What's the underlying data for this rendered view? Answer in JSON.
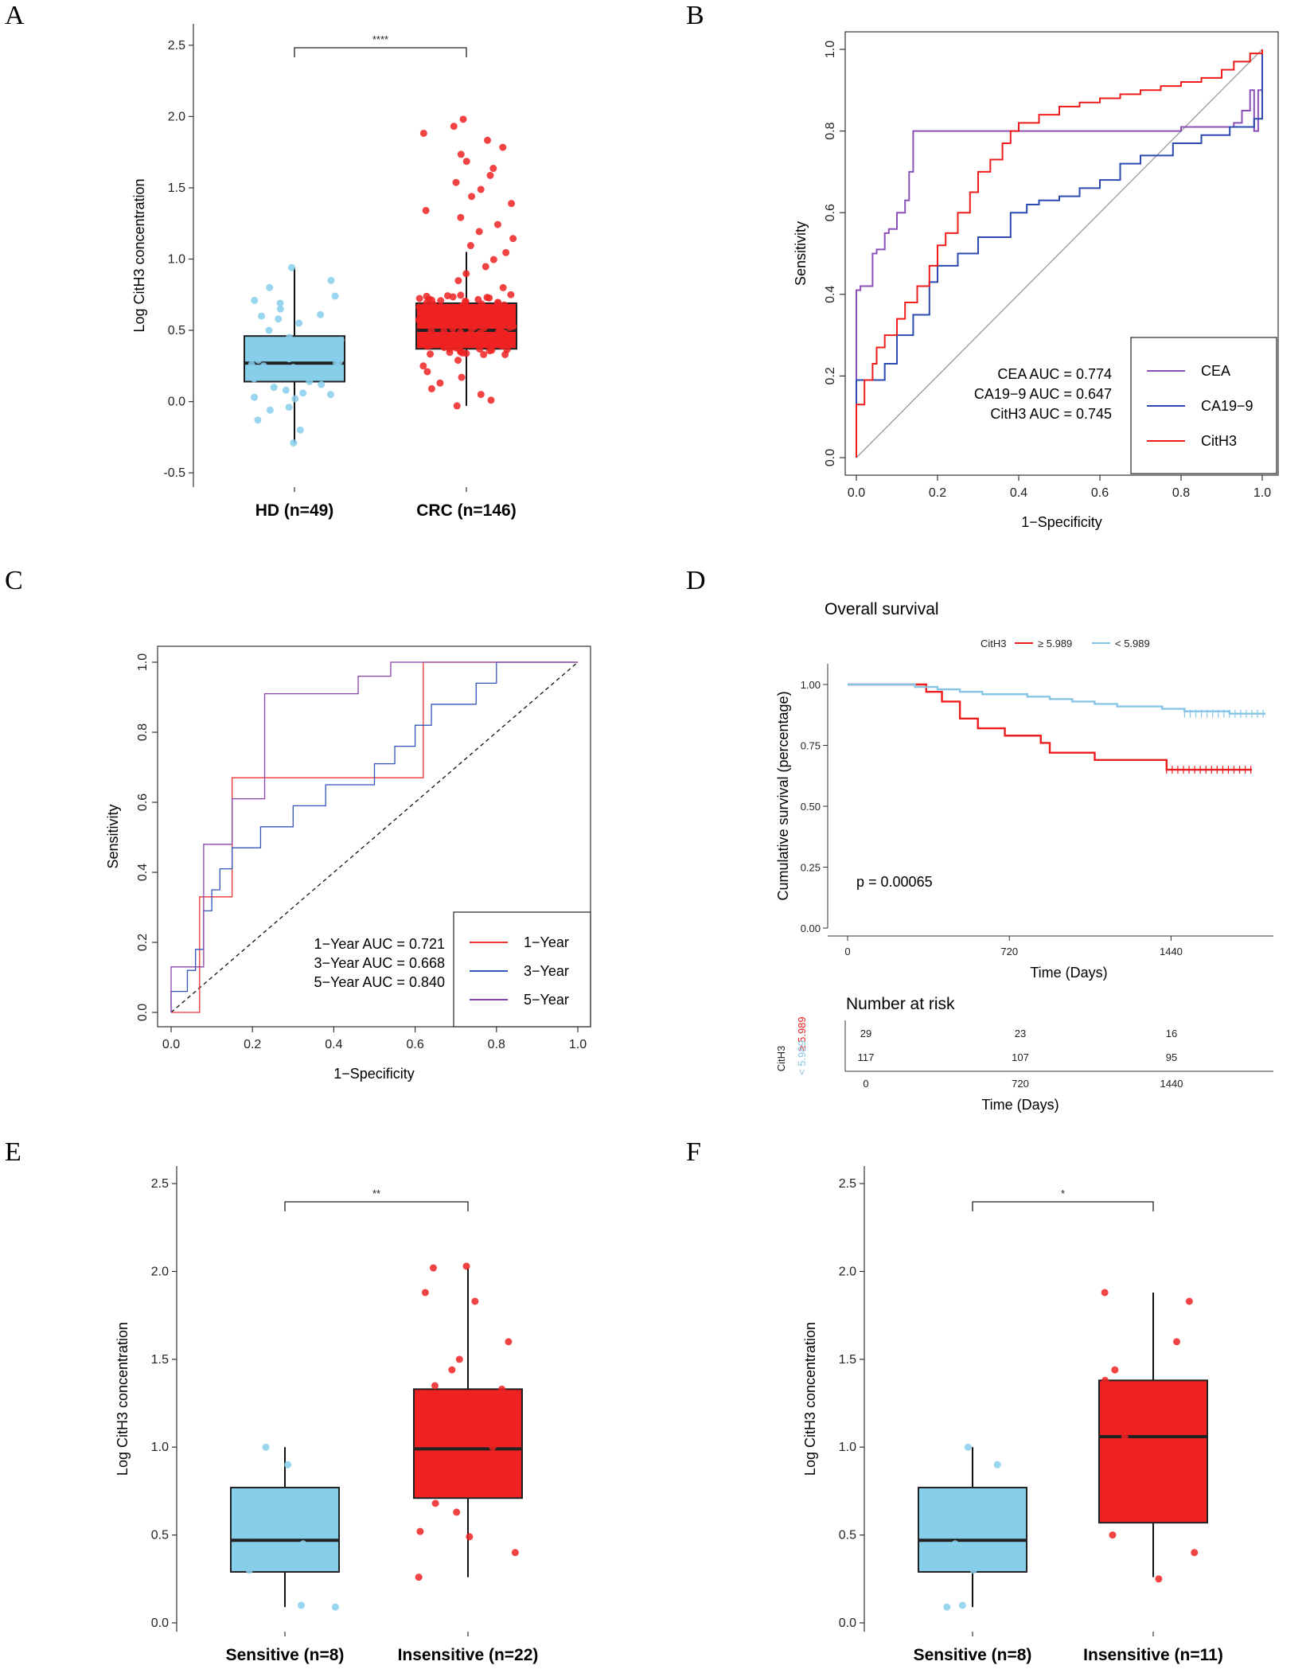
{
  "colors": {
    "hd": "#87ceeb",
    "crc": "#ee2222",
    "cea": "#8b4fb8",
    "ca199": "#2a4aaf",
    "cith3": "#ee1c1c",
    "km_high": "#ee1c1c",
    "km_low": "#87c5e6",
    "y1": "#ee3333",
    "y3": "#3355bb",
    "y5": "#8844aa"
  },
  "chart_data": [
    {
      "panel": "A",
      "type": "box",
      "ylabel": "Log CitH3 concentration",
      "ylim": [
        -0.6,
        2.65
      ],
      "yticks": [
        "-0.5",
        "0.0",
        "0.5",
        "1.0",
        "1.5",
        "2.0",
        "2.5"
      ],
      "significance": "****",
      "groups": [
        {
          "label": "HD (n=49)",
          "q1": 0.14,
          "median": 0.27,
          "q3": 0.46,
          "whisker_low": -0.29,
          "whisker_high": 0.94
        },
        {
          "label": "CRC (n=146)",
          "q1": 0.37,
          "median": 0.5,
          "q3": 0.69,
          "whisker_low": -0.03,
          "whisker_high": 1.05
        }
      ]
    },
    {
      "panel": "B",
      "type": "line",
      "xlabel": "1−Specificity",
      "ylabel": "Sensitivity",
      "xticks": [
        "0.0",
        "0.2",
        "0.4",
        "0.6",
        "0.8",
        "1.0"
      ],
      "yticks": [
        "0.0",
        "0.2",
        "0.4",
        "0.6",
        "0.8",
        "1.0"
      ],
      "auc_text": [
        "CEA AUC =  0.774",
        "CA19−9 AUC =  0.647",
        "CitH3 AUC =  0.745"
      ],
      "legend": [
        "CEA",
        "CA19−9",
        "CitH3"
      ],
      "series": [
        {
          "name": "CEA",
          "x": [
            0,
            0,
            0.01,
            0.04,
            0.05,
            0.07,
            0.08,
            0.1,
            0.12,
            0.13,
            0.14,
            0.4,
            0.8,
            0.93,
            0.95,
            0.97,
            0.98,
            0.99,
            1.0
          ],
          "y": [
            0,
            0.41,
            0.42,
            0.5,
            0.51,
            0.55,
            0.56,
            0.6,
            0.63,
            0.7,
            0.8,
            0.8,
            0.81,
            0.82,
            0.85,
            0.9,
            0.8,
            0.9,
            1.0
          ]
        },
        {
          "name": "CA19−9",
          "x": [
            0,
            0,
            0.05,
            0.07,
            0.1,
            0.14,
            0.18,
            0.2,
            0.25,
            0.3,
            0.35,
            0.38,
            0.42,
            0.45,
            0.5,
            0.55,
            0.6,
            0.65,
            0.7,
            0.78,
            0.85,
            0.92,
            0.98,
            1.0
          ],
          "y": [
            0,
            0.19,
            0.19,
            0.23,
            0.3,
            0.35,
            0.43,
            0.47,
            0.5,
            0.54,
            0.54,
            0.6,
            0.62,
            0.63,
            0.64,
            0.66,
            0.68,
            0.72,
            0.74,
            0.77,
            0.79,
            0.81,
            0.83,
            1.0
          ]
        },
        {
          "name": "CitH3",
          "x": [
            0,
            0,
            0.02,
            0.04,
            0.05,
            0.07,
            0.1,
            0.12,
            0.15,
            0.18,
            0.2,
            0.22,
            0.25,
            0.28,
            0.3,
            0.33,
            0.36,
            0.38,
            0.4,
            0.45,
            0.5,
            0.55,
            0.6,
            0.65,
            0.7,
            0.75,
            0.8,
            0.85,
            0.9,
            0.93,
            0.97,
            1.0
          ],
          "y": [
            0,
            0.13,
            0.19,
            0.23,
            0.27,
            0.3,
            0.34,
            0.38,
            0.42,
            0.47,
            0.52,
            0.55,
            0.6,
            0.65,
            0.7,
            0.73,
            0.77,
            0.8,
            0.82,
            0.84,
            0.86,
            0.87,
            0.88,
            0.89,
            0.9,
            0.91,
            0.92,
            0.93,
            0.95,
            0.97,
            0.99,
            1.0
          ]
        }
      ]
    },
    {
      "panel": "C",
      "type": "line",
      "xlabel": "1−Specificity",
      "ylabel": "Sensitivity",
      "xticks": [
        "0.0",
        "0.2",
        "0.4",
        "0.6",
        "0.8",
        "1.0"
      ],
      "yticks": [
        "0.0",
        "0.2",
        "0.4",
        "0.6",
        "0.8",
        "1.0"
      ],
      "auc_text": [
        "1−Year AUC =  0.721",
        "3−Year AUC =  0.668",
        "5−Year AUC =  0.840"
      ],
      "legend": [
        "1−Year",
        "3−Year",
        "5−Year"
      ],
      "series": [
        {
          "name": "1−Year",
          "x": [
            0,
            0.07,
            0.07,
            0.1,
            0.15,
            0.15,
            0.62,
            0.62,
            1.0
          ],
          "y": [
            0,
            0,
            0.33,
            0.33,
            0.33,
            0.67,
            0.67,
            1.0,
            1.0
          ]
        },
        {
          "name": "3−Year",
          "x": [
            0,
            0,
            0.04,
            0.06,
            0.08,
            0.1,
            0.12,
            0.15,
            0.18,
            0.22,
            0.26,
            0.3,
            0.34,
            0.38,
            0.42,
            0.5,
            0.55,
            0.6,
            0.64,
            0.7,
            0.75,
            0.8,
            0.8,
            1.0
          ],
          "y": [
            0,
            0.06,
            0.12,
            0.18,
            0.29,
            0.35,
            0.41,
            0.47,
            0.47,
            0.53,
            0.53,
            0.59,
            0.59,
            0.65,
            0.65,
            0.71,
            0.76,
            0.82,
            0.88,
            0.88,
            0.94,
            0.94,
            1.0,
            1.0
          ]
        },
        {
          "name": "5−Year",
          "x": [
            0,
            0,
            0.04,
            0.05,
            0.08,
            0.1,
            0.15,
            0.23,
            0.23,
            0.45,
            0.46,
            0.54,
            0.54,
            1.0
          ],
          "y": [
            0,
            0.13,
            0.13,
            0.13,
            0.48,
            0.48,
            0.61,
            0.61,
            0.91,
            0.91,
            0.96,
            0.96,
            1.0,
            1.0
          ]
        }
      ]
    },
    {
      "panel": "D",
      "type": "line",
      "title": "Overall survival",
      "xlabel": "Time (Days)",
      "ylabel": "Cumulative survival (percentage)",
      "xticks": [
        "0",
        "720",
        "1440"
      ],
      "yticks": [
        "0.00",
        "0.25",
        "0.50",
        "0.75",
        "1.00"
      ],
      "legend_title": "CitH3",
      "legend": [
        "≥ 5.989",
        "< 5.989"
      ],
      "pvalue": "p = 0.00065",
      "series": [
        {
          "name": "≥ 5.989",
          "x": [
            0,
            150,
            300,
            350,
            420,
            500,
            580,
            700,
            860,
            900,
            1040,
            1100,
            1300,
            1420,
            1800
          ],
          "y": [
            1.0,
            1.0,
            1.0,
            0.97,
            0.93,
            0.86,
            0.82,
            0.79,
            0.76,
            0.72,
            0.72,
            0.69,
            0.69,
            0.65,
            0.65
          ]
        },
        {
          "name": "< 5.989",
          "x": [
            0,
            150,
            300,
            400,
            500,
            600,
            700,
            800,
            900,
            1000,
            1100,
            1200,
            1300,
            1400,
            1500,
            1600,
            1700,
            1860
          ],
          "y": [
            1.0,
            1.0,
            0.99,
            0.98,
            0.97,
            0.96,
            0.96,
            0.95,
            0.94,
            0.93,
            0.92,
            0.91,
            0.91,
            0.9,
            0.89,
            0.89,
            0.88,
            0.88
          ]
        }
      ],
      "risk_table": {
        "title": "Number at risk",
        "strata_title": "CitH3",
        "rows": [
          {
            "label": "≥ 5.989",
            "values": [
              "29",
              "23",
              "16"
            ]
          },
          {
            "label": "< 5.989",
            "values": [
              "117",
              "107",
              "95"
            ]
          }
        ],
        "xticks": [
          "0",
          "720",
          "1440"
        ],
        "xlabel": "Time (Days)"
      }
    },
    {
      "panel": "E",
      "type": "box",
      "ylabel": "Log CitH3 concentration",
      "ylim": [
        -0.05,
        2.6
      ],
      "yticks": [
        "0.0",
        "0.5",
        "1.0",
        "1.5",
        "2.0",
        "2.5"
      ],
      "significance": "**",
      "groups": [
        {
          "label": "Sensitive (n=8)",
          "q1": 0.29,
          "median": 0.47,
          "q3": 0.77,
          "whisker_low": 0.09,
          "whisker_high": 1.0
        },
        {
          "label": "Insensitive (n=22)",
          "q1": 0.71,
          "median": 0.99,
          "q3": 1.33,
          "whisker_low": 0.26,
          "whisker_high": 2.02
        }
      ]
    },
    {
      "panel": "F",
      "type": "box",
      "ylabel": "Log CitH3 concentration",
      "ylim": [
        -0.05,
        2.6
      ],
      "yticks": [
        "0.0",
        "0.5",
        "1.0",
        "1.5",
        "2.0",
        "2.5"
      ],
      "significance": "*",
      "groups": [
        {
          "label": "Sensitive (n=8)",
          "q1": 0.29,
          "median": 0.47,
          "q3": 0.77,
          "whisker_low": 0.09,
          "whisker_high": 1.0
        },
        {
          "label": "Insensitive (n=11)",
          "q1": 0.57,
          "median": 1.06,
          "q3": 1.38,
          "whisker_low": 0.26,
          "whisker_high": 1.88
        }
      ]
    }
  ]
}
